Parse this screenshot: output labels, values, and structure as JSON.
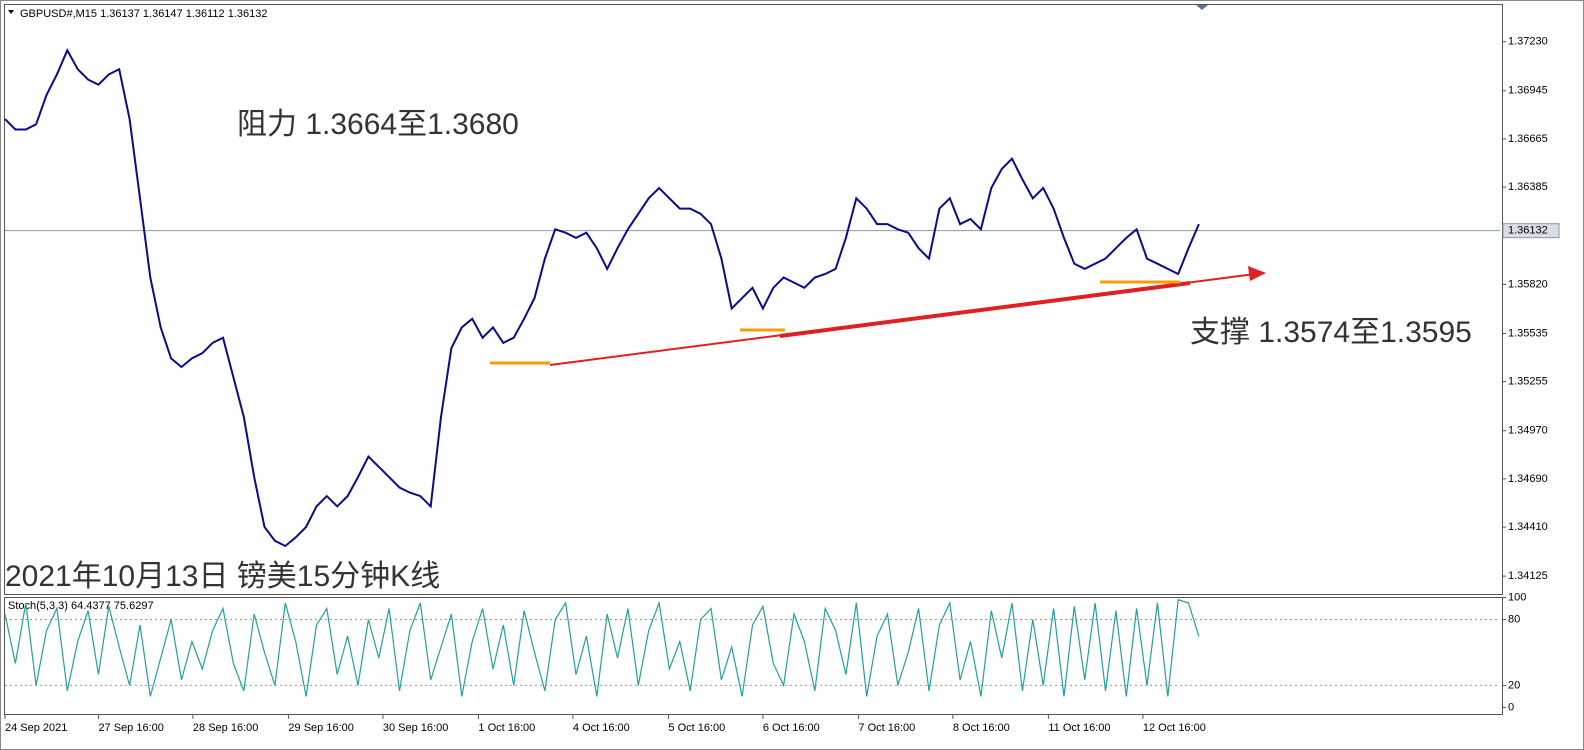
{
  "chart_data": [
    {
      "type": "line",
      "title": "GBPUSD#,M15  1.36137 1.36147 1.36112 1.36132",
      "color": "#0a0a8c",
      "values": [
        1.3678,
        1.3672,
        1.3672,
        1.3675,
        1.3692,
        1.3704,
        1.3718,
        1.3707,
        1.3701,
        1.3698,
        1.3704,
        1.3707,
        1.3678,
        1.3632,
        1.3586,
        1.3557,
        1.3539,
        1.3534,
        1.3539,
        1.3542,
        1.3548,
        1.3551,
        1.3528,
        1.3505,
        1.347,
        1.3441,
        1.3433,
        1.343,
        1.3435,
        1.3441,
        1.3453,
        1.3459,
        1.3453,
        1.3459,
        1.347,
        1.3482,
        1.3476,
        1.347,
        1.3464,
        1.3461,
        1.3459,
        1.3453,
        1.3505,
        1.3545,
        1.3557,
        1.3562,
        1.3551,
        1.3557,
        1.3548,
        1.3551,
        1.3562,
        1.3574,
        1.3597,
        1.3614,
        1.3612,
        1.3609,
        1.3612,
        1.3603,
        1.3591,
        1.3603,
        1.3614,
        1.3623,
        1.3632,
        1.3638,
        1.3632,
        1.3626,
        1.3626,
        1.3623,
        1.3617,
        1.3597,
        1.3568,
        1.3574,
        1.358,
        1.3568,
        1.358,
        1.3586,
        1.3583,
        1.358,
        1.3586,
        1.3588,
        1.3591,
        1.3609,
        1.3632,
        1.3626,
        1.3617,
        1.3617,
        1.3614,
        1.3612,
        1.3603,
        1.3597,
        1.3626,
        1.3632,
        1.3617,
        1.362,
        1.3614,
        1.3638,
        1.3649,
        1.3655,
        1.3643,
        1.3632,
        1.3638,
        1.3626,
        1.3609,
        1.3594,
        1.3591,
        1.3594,
        1.3597,
        1.3603,
        1.3609,
        1.3614,
        1.3597,
        1.3594,
        1.3591,
        1.3588,
        1.3603,
        1.3617
      ],
      "xlim": [
        0,
        144
      ],
      "ylim": [
        1.34021,
        1.37449
      ],
      "yticks": [
        {
          "value": 1.3723,
          "label": "1.37230"
        },
        1.36945,
        1.36665,
        1.36385,
        {
          "value": 1.3582,
          "label": "1.35820"
        },
        1.35535,
        1.35255,
        {
          "value": 1.3497,
          "label": "1.34970"
        },
        {
          "value": 1.3469,
          "label": "1.34690"
        },
        {
          "value": 1.3441,
          "label": "1.34410"
        },
        1.34125
      ],
      "current": 1.36132,
      "annotations": [
        "阻力 1.3664至1.3680",
        "支撑 1.3574至1.3595",
        "2021年10月13日 镑美15分钟K线"
      ]
    },
    {
      "type": "line",
      "title": "Stoch(5,3,3) 64.4377 75.6297",
      "color": "#20a0a0",
      "values": [
        85,
        40,
        95,
        20,
        70,
        90,
        15,
        60,
        88,
        30,
        92,
        55,
        20,
        75,
        10,
        45,
        80,
        25,
        60,
        35,
        70,
        90,
        40,
        15,
        85,
        50,
        20,
        95,
        60,
        10,
        75,
        90,
        30,
        65,
        20,
        80,
        45,
        90,
        15,
        70,
        95,
        25,
        55,
        85,
        10,
        60,
        90,
        35,
        75,
        20,
        88,
        50,
        15,
        80,
        95,
        30,
        65,
        10,
        85,
        45,
        90,
        20,
        70,
        95,
        35,
        60,
        15,
        80,
        90,
        25,
        55,
        10,
        75,
        92,
        40,
        20,
        85,
        60,
        15,
        90,
        70,
        30,
        95,
        10,
        65,
        85,
        20,
        50,
        90,
        15,
        75,
        95,
        25,
        60,
        10,
        88,
        45,
        95,
        15,
        80,
        20,
        90,
        10,
        92,
        25,
        95,
        15,
        88,
        10,
        90,
        20,
        95,
        10,
        98,
        95,
        64.4377
      ],
      "xlim": [
        0,
        144
      ],
      "ylim": [
        -6,
        100.5
      ],
      "yticks": [
        0,
        20,
        80,
        100
      ],
      "xticks": [
        {
          "value": 0,
          "label": "24 Sep 2021"
        },
        {
          "value": 9.0,
          "label": "27 Sep 16:00"
        },
        {
          "value": 18.1,
          "label": "28 Sep 16:00"
        },
        {
          "value": 27.3,
          "label": "29 Sep 16:00"
        },
        {
          "value": 36.4,
          "label": "30 Sep 16:00"
        },
        {
          "value": 45.6,
          "label": "1 Oct 16:00"
        },
        {
          "value": 54.7,
          "label": "4 Oct 16:00"
        },
        {
          "value": 63.9,
          "label": "5 Oct 16:00"
        },
        {
          "value": 73.0,
          "label": "6 Oct 16:00"
        },
        {
          "value": 82.2,
          "label": "7 Oct 16:00"
        },
        {
          "value": 91.3,
          "label": "8 Oct 16:00"
        },
        {
          "value": 100.5,
          "label": "11 Oct 16:00"
        },
        {
          "value": 109.6,
          "label": "12 Oct 16:00"
        }
      ]
    }
  ]
}
